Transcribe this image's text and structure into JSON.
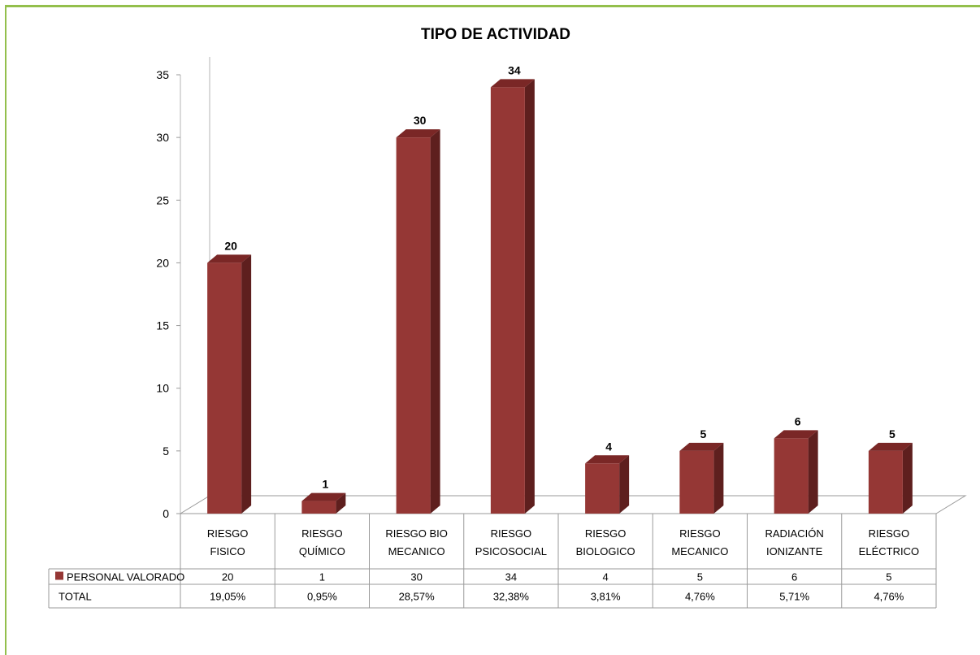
{
  "chart_data": {
    "type": "bar",
    "title": "TIPO DE ACTIVIDAD",
    "categories": [
      [
        "RIESGO",
        "FISICO"
      ],
      [
        "RIESGO",
        "QUÍMICO"
      ],
      [
        "RIESGO BIO",
        "MECANICO"
      ],
      [
        "RIESGO",
        "PSICOSOCIAL"
      ],
      [
        "RIESGO",
        "BIOLOGICO"
      ],
      [
        "RIESGO",
        "MECANICO"
      ],
      [
        "RADIACIÓN",
        "IONIZANTE"
      ],
      [
        "RIESGO",
        "ELÉCTRICO"
      ]
    ],
    "series": [
      {
        "name": "PERSONAL VALORADO",
        "values": [
          20,
          1,
          30,
          34,
          4,
          5,
          6,
          5
        ],
        "color": "#953735"
      }
    ],
    "table_rows": [
      {
        "label": "PERSONAL VALORADO",
        "values": [
          "20",
          "1",
          "30",
          "34",
          "4",
          "5",
          "6",
          "5"
        ]
      },
      {
        "label": "TOTAL",
        "values": [
          "19,05%",
          "0,95%",
          "28,57%",
          "32,38%",
          "3,81%",
          "4,76%",
          "5,71%",
          "4,76%"
        ]
      }
    ],
    "ylim": [
      0,
      35
    ],
    "yticks": [
      0,
      5,
      10,
      15,
      20,
      25,
      30,
      35
    ],
    "xlabel": "",
    "ylabel": "",
    "grid": false,
    "legend": "in data table (left)",
    "border_color": "#93bf4c"
  }
}
